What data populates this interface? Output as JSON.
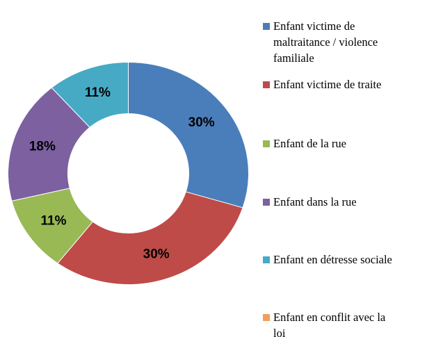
{
  "chart_data": {
    "type": "donut",
    "categories": [
      "Enfant victime de maltraitance / violence familiale",
      "Enfant victime de traite",
      "Enfant de la rue",
      "Enfant dans la rue",
      "Enfant en détresse sociale",
      "Enfant en conflit avec la loi"
    ],
    "values": [
      30,
      30,
      11,
      18,
      11,
      0
    ],
    "value_labels": [
      "30%",
      "30%",
      "11%",
      "18%",
      "11%",
      null
    ],
    "colors": [
      "#4a7ebb",
      "#be4b48",
      "#98b954",
      "#7d60a0",
      "#46aac5",
      "#f59d56"
    ],
    "legend": "right"
  }
}
